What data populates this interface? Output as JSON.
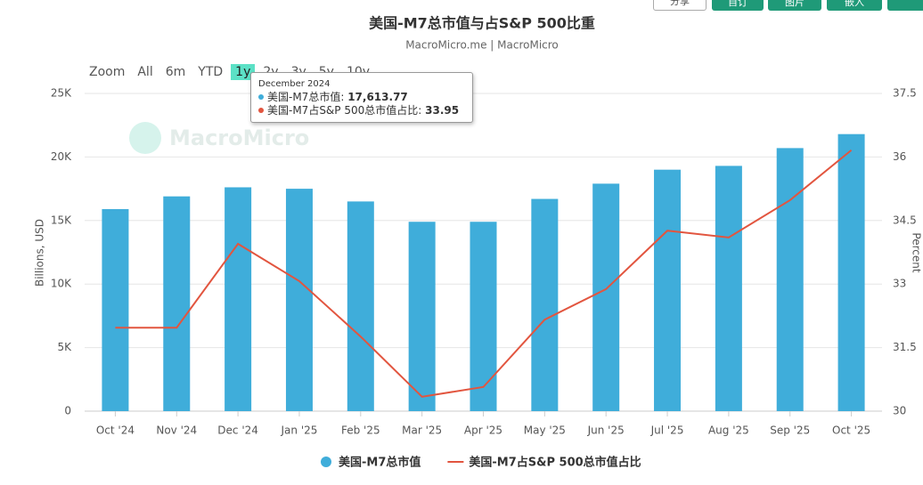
{
  "chart_data": {
    "type": "bar_line",
    "title": "美国-M7总市值与占S&P 500比重",
    "subtitle": "MacroMicro.me | MacroMicro",
    "watermark": "MacroMicro",
    "ylabel": "Billions, USD",
    "y2label": "Percent",
    "categories": [
      "Oct '24",
      "Nov '24",
      "Dec '24",
      "Jan '25",
      "Feb '25",
      "Mar '25",
      "Apr '25",
      "May '25",
      "Jun '25",
      "Jul '25",
      "Aug '25",
      "Sep '25",
      "Oct '25"
    ],
    "series": [
      {
        "name": "美国-M7总市值",
        "color": "#3fadda",
        "kind": "bar",
        "values": [
          15900,
          16900,
          17613.77,
          17500,
          16500,
          14900,
          14900,
          16700,
          17900,
          19000,
          19300,
          20700,
          21800
        ]
      },
      {
        "name": "美国-M7占S&P 500总市值占比",
        "color": "#e2553f",
        "kind": "line",
        "axis": "y2",
        "values": [
          31.97,
          31.97,
          33.95,
          33.07,
          31.76,
          30.34,
          30.57,
          32.16,
          32.88,
          34.26,
          34.1,
          34.98,
          36.16
        ]
      }
    ],
    "ylim": [
      0,
      25000
    ],
    "yticks": [
      0,
      {
        "value": 5000,
        "label": "5K"
      },
      {
        "value": 10000,
        "label": "10K"
      },
      {
        "value": 15000,
        "label": "15K"
      },
      {
        "value": 20000,
        "label": "20K"
      },
      {
        "value": 25000,
        "label": "25K"
      }
    ],
    "y2lim": [
      30,
      37.5
    ],
    "y2ticks": [
      30,
      31.5,
      33,
      34.5,
      36,
      37.5
    ],
    "grid": true,
    "legend": "bottom"
  },
  "zoom": {
    "label": "Zoom",
    "buttons": [
      "All",
      "6m",
      "YTD",
      "1y",
      "2y",
      "3y",
      "5y",
      "10y"
    ],
    "selected": 3
  },
  "toolbar": [
    "分享",
    "自订",
    "图片",
    "嵌入"
  ],
  "tooltip": {
    "title": "December 2024",
    "rows": [
      {
        "label": "美国-M7总市值:",
        "value": "17,613.77"
      },
      {
        "label": "美国-M7占S&P 500总市值占比:",
        "value": "33.95"
      }
    ]
  }
}
